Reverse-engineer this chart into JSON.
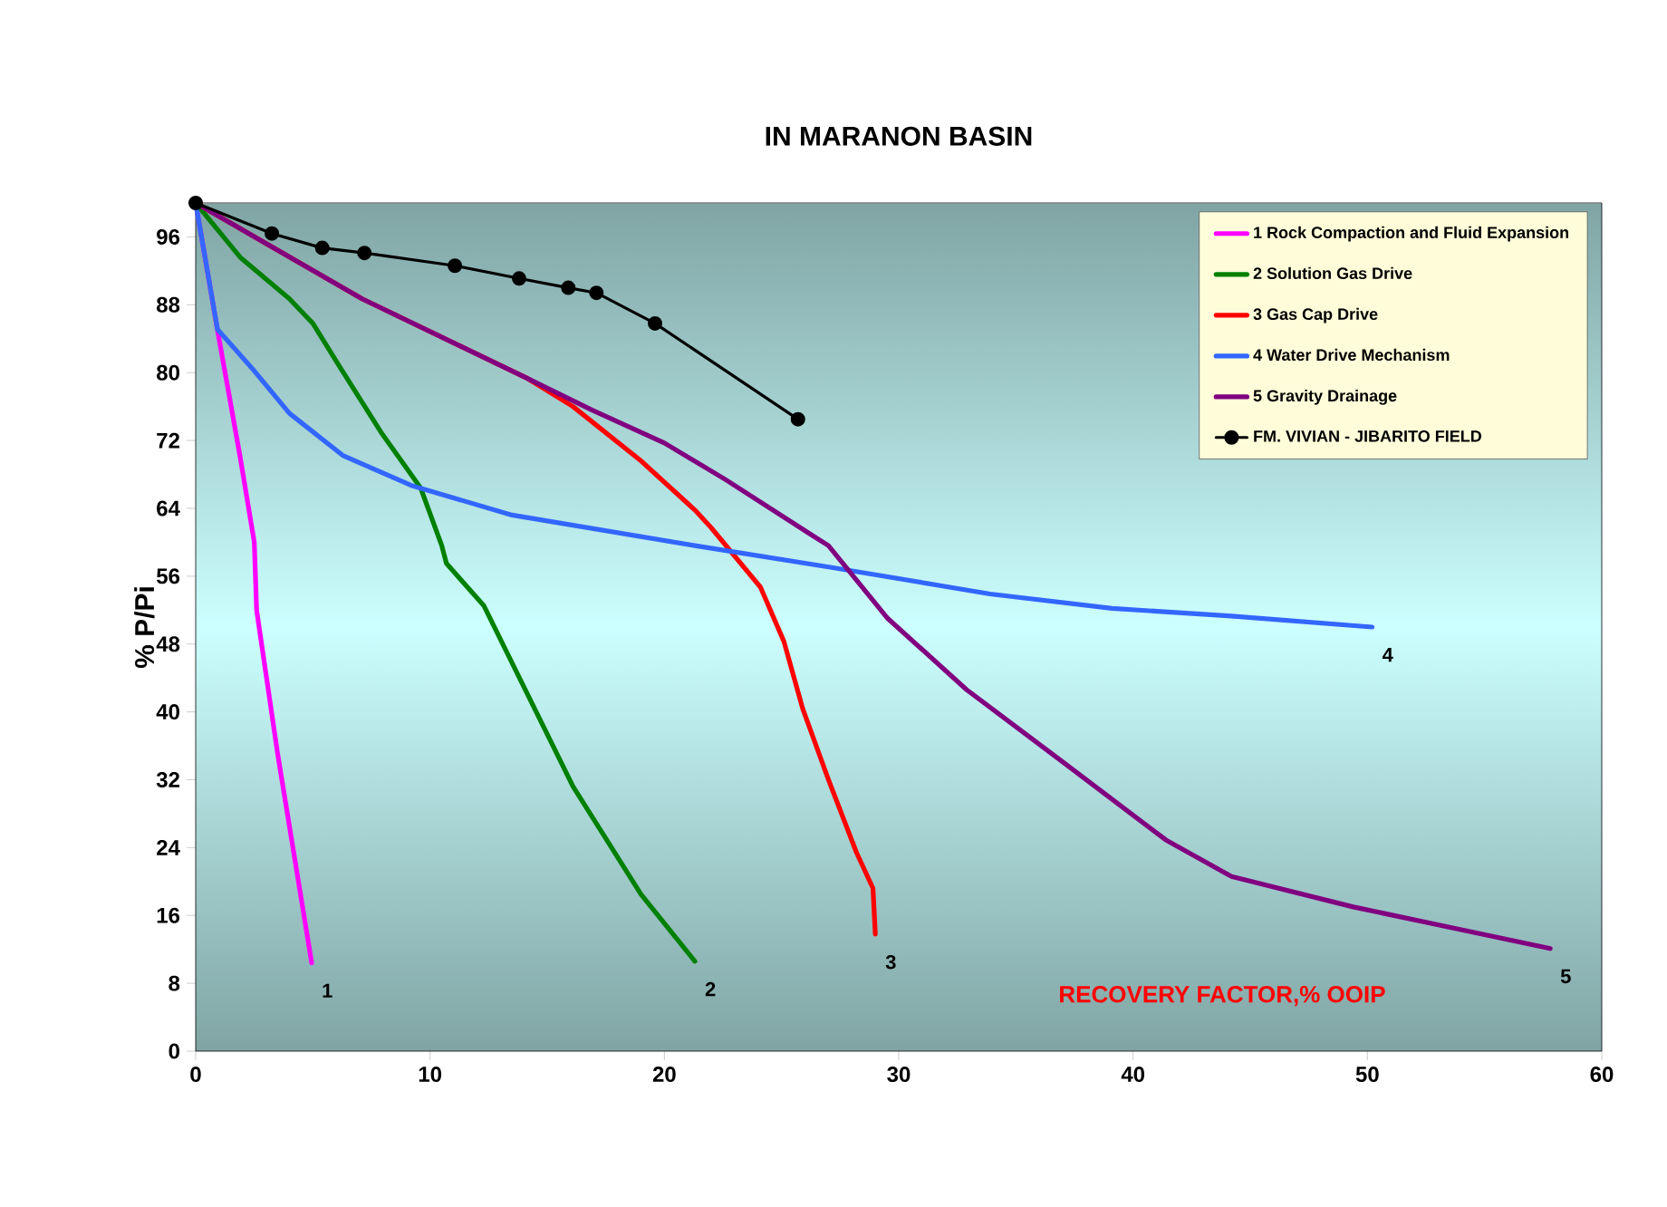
{
  "chart_data": {
    "type": "line",
    "title": "IN MARANON BASIN",
    "xlabel": "RECOVERY FACTOR,% OOIP",
    "ylabel": "% P/Pi",
    "xlim": [
      0,
      60
    ],
    "ylim": [
      0,
      100
    ],
    "xticks": [
      0,
      10,
      20,
      30,
      40,
      50,
      60
    ],
    "yticks": [
      0,
      8,
      16,
      24,
      32,
      40,
      48,
      56,
      64,
      72,
      80,
      88,
      96
    ],
    "legend": "top right",
    "grid": false,
    "line_style": "solid",
    "series": [
      {
        "name": "1 Rock Compaction and Fluid Expansion",
        "color": "#ff00ff",
        "marker": "none",
        "x": [
          0,
          0.93,
          1.9,
          2.5,
          2.6,
          3.5,
          4.95
        ],
        "values": [
          100,
          85,
          70,
          60,
          52,
          35,
          10.4
        ]
      },
      {
        "name": "2  Solution Gas Drive",
        "color": "#008000",
        "marker": "none",
        "x": [
          0,
          1.9,
          4.0,
          5.0,
          6.1,
          7.9,
          9.6,
          10.5,
          10.7,
          12.3,
          16.1,
          19.0,
          21.3
        ],
        "values": [
          100,
          93.6,
          88.7,
          85.8,
          80.9,
          73,
          66.4,
          59.6,
          57.5,
          52.5,
          31.2,
          18.5,
          10.6
        ]
      },
      {
        "name": "3  Gas Cap Drive",
        "color": "#ff0000",
        "marker": "none",
        "x": [
          0,
          7.1,
          14.1,
          16.1,
          19.0,
          21.3,
          22.0,
          24.1,
          25.1,
          25.9,
          27.0,
          28.2,
          28.9,
          29.0
        ],
        "values": [
          100,
          88.7,
          79.4,
          76,
          69.6,
          63.8,
          61.7,
          54.7,
          48.3,
          40.4,
          32,
          23.4,
          19.2,
          13.8
        ]
      },
      {
        "name": "4  Water Drive Mechanism",
        "color": "#3366ff",
        "marker": "none",
        "x": [
          0,
          0.93,
          2.5,
          4.0,
          6.3,
          9.2,
          13.5,
          21.3,
          27.2,
          33.9,
          39.1,
          44.2,
          50.2
        ],
        "values": [
          100,
          85.1,
          80.2,
          75.2,
          70.2,
          66.7,
          63.2,
          59.6,
          57.0,
          53.9,
          52.2,
          51.3,
          50.0
        ]
      },
      {
        "name": "5  Gravity Drainage",
        "color": "#800080",
        "marker": "none",
        "x": [
          0,
          7.1,
          14.1,
          16.9,
          20.0,
          22.6,
          26.2,
          27.0,
          29.5,
          32.9,
          37.0,
          41.4,
          44.2,
          49.4,
          57.8
        ],
        "values": [
          100,
          88.7,
          79.4,
          75.6,
          71.7,
          67.4,
          61.0,
          59.6,
          51.1,
          42.6,
          34.1,
          24.9,
          20.6,
          17.0,
          12.1
        ]
      },
      {
        "name": "FM. VIVIAN - JIBARITO FIELD",
        "color": "#000000",
        "marker": "circle",
        "x": [
          0,
          3.25,
          5.4,
          7.2,
          11.06,
          13.8,
          15.9,
          17.1,
          19.6,
          25.7
        ],
        "values": [
          100,
          96.4,
          94.7,
          94.1,
          92.6,
          91.1,
          90.0,
          89.4,
          85.8,
          74.5
        ]
      }
    ],
    "annotations": [
      "1",
      "2",
      "3",
      "4",
      "5"
    ]
  }
}
